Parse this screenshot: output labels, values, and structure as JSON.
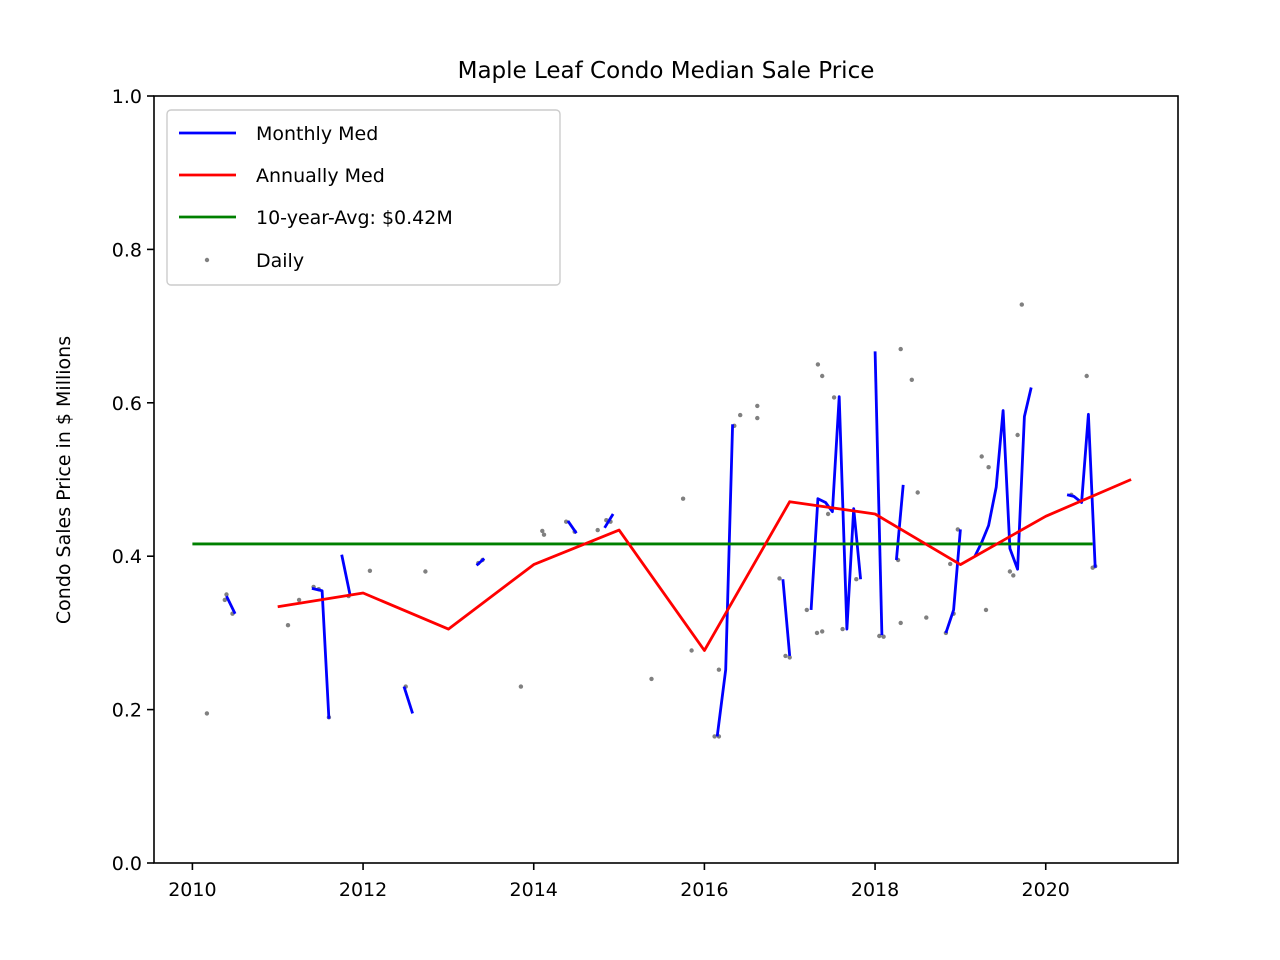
{
  "chart_data": {
    "type": "line",
    "title": "Maple Leaf Condo Median Sale Price",
    "xlabel": "",
    "ylabel": "Condo Sales Price in $ Millions",
    "xlim": [
      2009.55,
      2021.55
    ],
    "ylim": [
      0.0,
      1.0
    ],
    "x_ticks": [
      "2010",
      "2012",
      "2014",
      "2016",
      "2018",
      "2020"
    ],
    "y_ticks": [
      "0.0",
      "0.2",
      "0.4",
      "0.6",
      "0.8",
      "1.0"
    ],
    "legend_position": "upper-left",
    "grid": false,
    "legend": [
      {
        "label": "Monthly Med",
        "color": "#0000ff",
        "style": "line"
      },
      {
        "label": "Annually Med",
        "color": "#ff0000",
        "style": "line"
      },
      {
        "label": "10-year-Avg: $0.42M",
        "color": "#008000",
        "style": "line"
      },
      {
        "label": "Daily",
        "color": "#808080",
        "style": "dot"
      }
    ],
    "series": [
      {
        "name": "Monthly Med",
        "color": "#0000ff",
        "segments": [
          [
            [
              2010.4,
              0.348
            ],
            [
              2010.5,
              0.325
            ]
          ],
          [
            [
              2011.4,
              0.358
            ],
            [
              2011.52,
              0.355
            ],
            [
              2011.6,
              0.188
            ]
          ],
          [
            [
              2011.75,
              0.402
            ],
            [
              2011.85,
              0.348
            ]
          ],
          [
            [
              2012.48,
              0.23
            ],
            [
              2012.58,
              0.195
            ]
          ],
          [
            [
              2013.33,
              0.388
            ],
            [
              2013.42,
              0.397
            ]
          ],
          [
            [
              2014.4,
              0.446
            ],
            [
              2014.5,
              0.43
            ]
          ],
          [
            [
              2014.83,
              0.437
            ],
            [
              2014.93,
              0.455
            ]
          ],
          [
            [
              2016.15,
              0.165
            ],
            [
              2016.25,
              0.252
            ],
            [
              2016.33,
              0.572
            ]
          ],
          [
            [
              2016.92,
              0.37
            ],
            [
              2017.0,
              0.27
            ]
          ],
          [
            [
              2017.25,
              0.33
            ],
            [
              2017.33,
              0.475
            ],
            [
              2017.42,
              0.47
            ],
            [
              2017.5,
              0.458
            ],
            [
              2017.58,
              0.608
            ],
            [
              2017.67,
              0.305
            ],
            [
              2017.75,
              0.462
            ],
            [
              2017.83,
              0.37
            ]
          ],
          [
            [
              2018.0,
              0.667
            ],
            [
              2018.08,
              0.297
            ]
          ],
          [
            [
              2018.25,
              0.395
            ],
            [
              2018.33,
              0.493
            ]
          ],
          [
            [
              2018.83,
              0.3
            ],
            [
              2018.92,
              0.33
            ],
            [
              2019.0,
              0.435
            ]
          ],
          [
            [
              2019.17,
              0.4
            ],
            [
              2019.25,
              0.418
            ],
            [
              2019.33,
              0.44
            ],
            [
              2019.42,
              0.49
            ],
            [
              2019.5,
              0.59
            ],
            [
              2019.58,
              0.41
            ],
            [
              2019.67,
              0.383
            ],
            [
              2019.75,
              0.582
            ],
            [
              2019.83,
              0.62
            ]
          ],
          [
            [
              2020.25,
              0.48
            ],
            [
              2020.33,
              0.478
            ],
            [
              2020.42,
              0.47
            ],
            [
              2020.5,
              0.585
            ],
            [
              2020.58,
              0.385
            ]
          ]
        ]
      },
      {
        "name": "Annually Med",
        "color": "#ff0000",
        "x": [
          2011,
          2012,
          2013,
          2014,
          2015,
          2016,
          2017,
          2018,
          2019,
          2020,
          2021
        ],
        "y": [
          0.334,
          0.352,
          0.305,
          0.389,
          0.434,
          0.277,
          0.471,
          0.455,
          0.389,
          0.452,
          0.5
        ]
      },
      {
        "name": "10-year-Avg: $0.42M",
        "color": "#008000",
        "x": [
          2010.0,
          2020.55
        ],
        "y": [
          0.416,
          0.416
        ]
      },
      {
        "name": "Daily",
        "color": "#808080",
        "type": "scatter",
        "points": [
          [
            2010.17,
            0.195
          ],
          [
            2010.38,
            0.343
          ],
          [
            2010.4,
            0.35
          ],
          [
            2010.47,
            0.325
          ],
          [
            2011.12,
            0.31
          ],
          [
            2011.25,
            0.343
          ],
          [
            2011.42,
            0.36
          ],
          [
            2011.48,
            0.357
          ],
          [
            2011.6,
            0.19
          ],
          [
            2011.83,
            0.348
          ],
          [
            2012.08,
            0.381
          ],
          [
            2012.5,
            0.23
          ],
          [
            2012.73,
            0.38
          ],
          [
            2013.35,
            0.391
          ],
          [
            2013.4,
            0.395
          ],
          [
            2013.85,
            0.23
          ],
          [
            2014.1,
            0.433
          ],
          [
            2014.12,
            0.428
          ],
          [
            2014.38,
            0.445
          ],
          [
            2014.48,
            0.432
          ],
          [
            2014.75,
            0.434
          ],
          [
            2014.85,
            0.447
          ],
          [
            2014.9,
            0.445
          ],
          [
            2015.38,
            0.24
          ],
          [
            2015.75,
            0.475
          ],
          [
            2015.85,
            0.277
          ],
          [
            2016.12,
            0.165
          ],
          [
            2016.17,
            0.165
          ],
          [
            2016.17,
            0.252
          ],
          [
            2016.35,
            0.57
          ],
          [
            2016.42,
            0.584
          ],
          [
            2016.62,
            0.58
          ],
          [
            2016.62,
            0.596
          ],
          [
            2016.88,
            0.371
          ],
          [
            2016.95,
            0.27
          ],
          [
            2017.0,
            0.268
          ],
          [
            2017.2,
            0.33
          ],
          [
            2017.32,
            0.3
          ],
          [
            2017.33,
            0.65
          ],
          [
            2017.38,
            0.635
          ],
          [
            2017.38,
            0.302
          ],
          [
            2017.45,
            0.455
          ],
          [
            2017.52,
            0.607
          ],
          [
            2017.62,
            0.305
          ],
          [
            2017.78,
            0.37
          ],
          [
            2018.05,
            0.296
          ],
          [
            2018.1,
            0.295
          ],
          [
            2018.27,
            0.395
          ],
          [
            2018.3,
            0.67
          ],
          [
            2018.3,
            0.313
          ],
          [
            2018.43,
            0.63
          ],
          [
            2018.5,
            0.483
          ],
          [
            2018.6,
            0.32
          ],
          [
            2018.83,
            0.3
          ],
          [
            2018.88,
            0.39
          ],
          [
            2018.92,
            0.325
          ],
          [
            2018.97,
            0.435
          ],
          [
            2019.25,
            0.53
          ],
          [
            2019.3,
            0.33
          ],
          [
            2019.33,
            0.516
          ],
          [
            2019.58,
            0.38
          ],
          [
            2019.62,
            0.375
          ],
          [
            2019.67,
            0.558
          ],
          [
            2019.72,
            0.728
          ],
          [
            2020.3,
            0.48
          ],
          [
            2020.48,
            0.635
          ],
          [
            2020.55,
            0.385
          ],
          [
            2020.58,
            0.387
          ]
        ]
      }
    ]
  }
}
